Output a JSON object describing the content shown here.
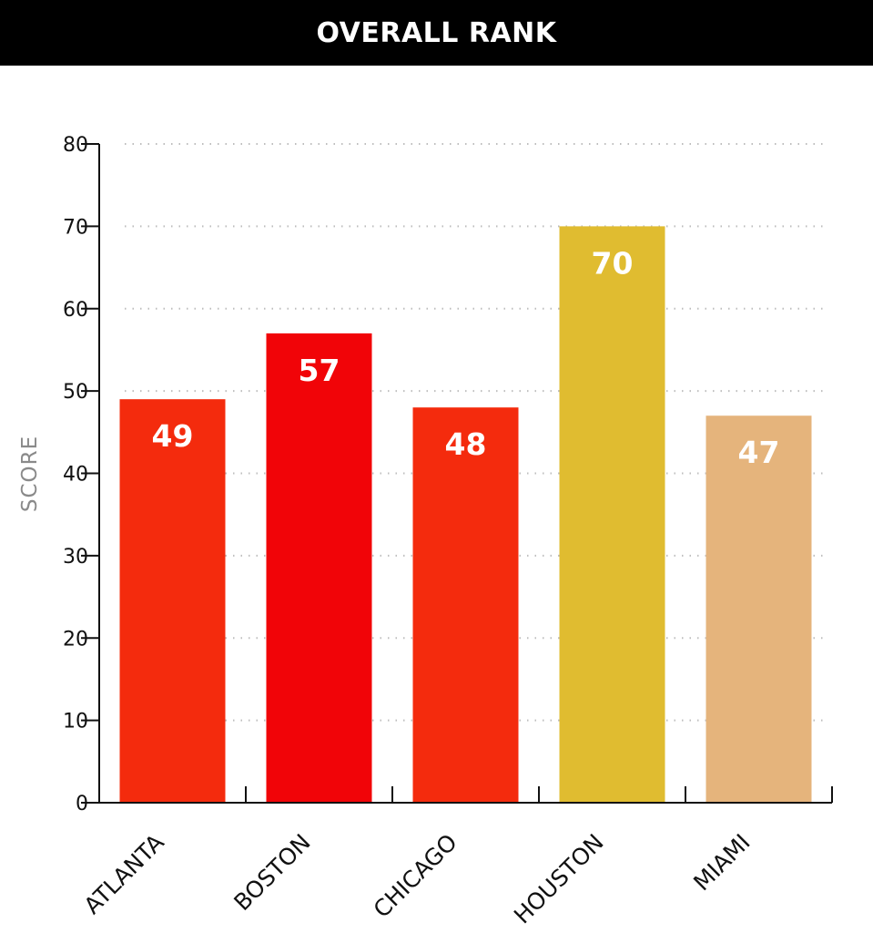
{
  "header": {
    "title": "OVERALL RANK"
  },
  "chart_data": {
    "type": "bar",
    "title": "OVERALL RANK",
    "ylabel": "SCORE",
    "xlabel": "",
    "categories": [
      "ATLANTA",
      "BOSTON",
      "CHICAGO",
      "HOUSTON",
      "MIAMI"
    ],
    "values": [
      49,
      57,
      48,
      70,
      47
    ],
    "colors": [
      "#f42b0d",
      "#f10408",
      "#f42b0d",
      "#e0bc30",
      "#e5b47c"
    ],
    "ylim": [
      0,
      80
    ],
    "yticks": [
      0,
      10,
      20,
      30,
      40,
      50,
      60,
      70,
      80
    ],
    "grid": true,
    "legend": "none"
  }
}
